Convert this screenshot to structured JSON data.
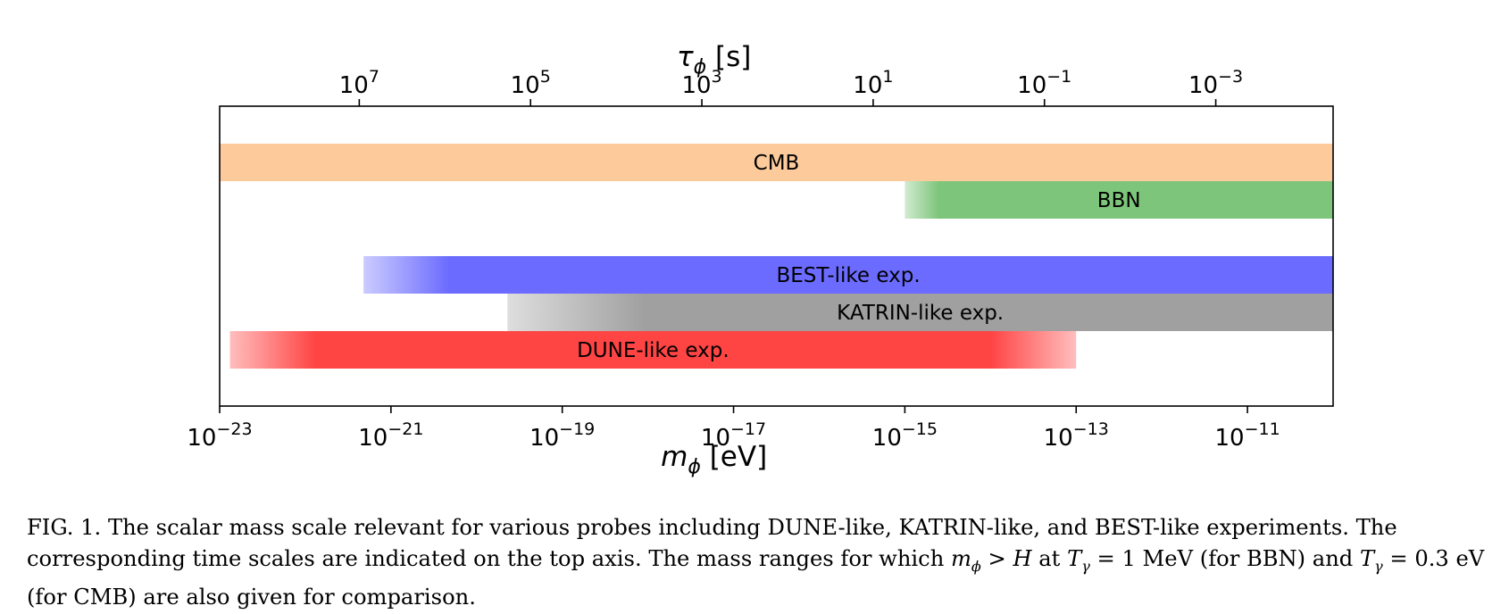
{
  "chart_data": {
    "type": "range_bars",
    "x_axis": {
      "label": "m_ϕ [eV]",
      "label_var": "m",
      "label_sub": "ϕ",
      "label_unit": " [eV]",
      "scale": "log10",
      "range_log10": [
        -23,
        -10
      ],
      "ticks": [
        {
          "base": "10",
          "exp": "−23",
          "log": -23
        },
        {
          "base": "10",
          "exp": "−21",
          "log": -21
        },
        {
          "base": "10",
          "exp": "−19",
          "log": -19
        },
        {
          "base": "10",
          "exp": "−17",
          "log": -17
        },
        {
          "base": "10",
          "exp": "−15",
          "log": -15
        },
        {
          "base": "10",
          "exp": "−13",
          "log": -13
        },
        {
          "base": "10",
          "exp": "−11",
          "log": -11
        }
      ]
    },
    "top_axis": {
      "label": "τ_ϕ [s]",
      "label_var": "τ",
      "label_sub": "ϕ",
      "label_unit": " [s]",
      "scale": "log10",
      "ticks": [
        {
          "base": "10",
          "exp": "7",
          "mass_log": -21.37
        },
        {
          "base": "10",
          "exp": "5",
          "mass_log": -19.37
        },
        {
          "base": "10",
          "exp": "3",
          "mass_log": -17.37
        },
        {
          "base": "10",
          "exp": "1",
          "mass_log": -15.37
        },
        {
          "base": "10",
          "exp": "−1",
          "mass_log": -13.37
        },
        {
          "base": "10",
          "exp": "−3",
          "mass_log": -11.37
        }
      ]
    },
    "bands": [
      {
        "label": "CMB",
        "min_log": -23.0,
        "max_log": -10.0,
        "color": "#fdca9b",
        "fade_left": 0,
        "fade_right": 0,
        "row": 0
      },
      {
        "label": "BBN",
        "min_log": -15.0,
        "max_log": -10.0,
        "color": "#7dc57a",
        "fade_left": 0.4,
        "fade_right": 0,
        "row": 1
      },
      {
        "label": "BEST-like exp.",
        "min_log": -21.32,
        "max_log": -10.0,
        "color": "#6b6bff",
        "fade_left": 1.0,
        "fade_right": 0,
        "row": 3
      },
      {
        "label": "KATRIN-like exp.",
        "min_log": -19.64,
        "max_log": -10.0,
        "color": "#a0a0a0",
        "fade_left": 1.6,
        "fade_right": 0,
        "row": 4
      },
      {
        "label": "DUNE-like exp.",
        "min_log": -22.88,
        "max_log": -13.0,
        "color": "#ff4444",
        "fade_left": 1.0,
        "fade_right": 1.0,
        "row": 5
      }
    ]
  },
  "caption": {
    "part1": "FIG. 1. The scalar mass scale relevant for various probes including DUNE-like, KATRIN-like, and BEST-like experiments. The corresponding time scales are indicated on the top axis. The mass ranges for which ",
    "m": "m",
    "phi": "ϕ",
    "gt": " > ",
    "H": "H",
    "at": " at ",
    "T1": "T",
    "gamma1": "γ",
    "eq1": " = 1 MeV (for BBN) and ",
    "T2": "T",
    "gamma2": "γ",
    "eq2": " = 0.3 eV (for CMB) are also given for comparison."
  }
}
